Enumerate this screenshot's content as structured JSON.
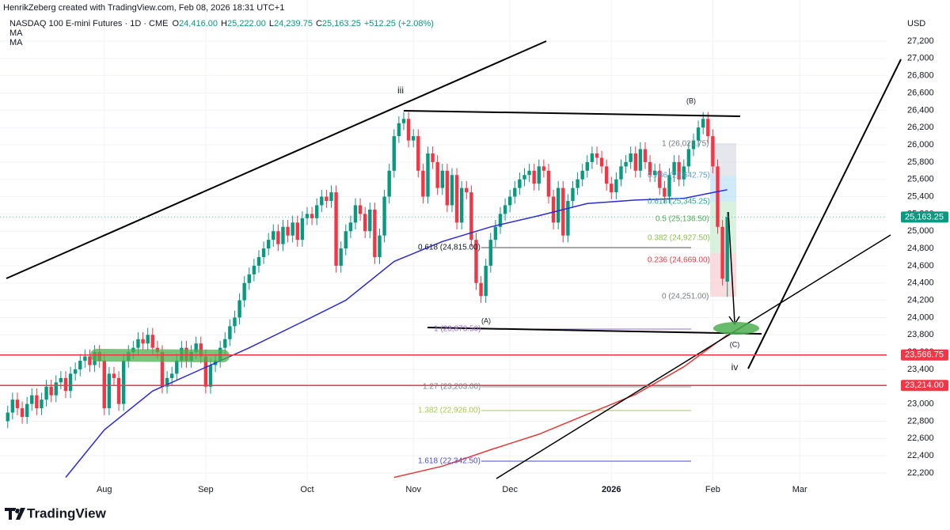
{
  "header": {
    "credit": "HenrikZeberg created with TradingView.com, Feb 08, 2026 18:31 UTC+1",
    "symbol": "NASDAQ 100 E-mini Futures · 1D · CME",
    "o_label": "O",
    "open": "24,416.00",
    "h_label": "H",
    "high": "25,222.00",
    "l_label": "L",
    "low": "24,239.75",
    "c_label": "C",
    "close": "25,163.25",
    "change": "+512.25 (+2.08%)",
    "indicators": [
      "MA",
      "MA"
    ]
  },
  "footer": {
    "brand": "TradingView"
  },
  "chart_data": {
    "type": "candlestick",
    "currency": "USD",
    "up_color": "#089981",
    "down_color": "#f23645",
    "grid": true,
    "xlim": [
      -1.6,
      182
    ],
    "xticks": [
      {
        "value": 20,
        "label": "Aug"
      },
      {
        "value": 41,
        "label": "Sep"
      },
      {
        "value": 62,
        "label": "Oct"
      },
      {
        "value": 84,
        "label": "Nov"
      },
      {
        "value": 104,
        "label": "Dec"
      },
      {
        "value": 125,
        "label": "2026"
      },
      {
        "value": 146,
        "label": "Feb"
      },
      {
        "value": 164,
        "label": "Mar"
      }
    ],
    "ylim": [
      22200,
      27200
    ],
    "yticks": [
      {
        "value": 22200,
        "label": "22,200"
      },
      {
        "value": 22400,
        "label": "22,400"
      },
      {
        "value": 22600,
        "label": "22,600"
      },
      {
        "value": 22800,
        "label": "22,800"
      },
      {
        "value": 23000,
        "label": "23,000"
      },
      {
        "value": 23200,
        "label": "23,200"
      },
      {
        "value": 23400,
        "label": "23,400"
      },
      {
        "value": 23600,
        "label": "23,600"
      },
      {
        "value": 23800,
        "label": "23,800"
      },
      {
        "value": 24000,
        "label": "24,000"
      },
      {
        "value": 24200,
        "label": "24,200"
      },
      {
        "value": 24400,
        "label": "24,400"
      },
      {
        "value": 24600,
        "label": "24,600"
      },
      {
        "value": 24800,
        "label": "24,800"
      },
      {
        "value": 25000,
        "label": "25,000"
      },
      {
        "value": 25200,
        "label": "25,200"
      },
      {
        "value": 25400,
        "label": "25,400"
      },
      {
        "value": 25600,
        "label": "25,600"
      },
      {
        "value": 25800,
        "label": "25,800"
      },
      {
        "value": 26000,
        "label": "26,000"
      },
      {
        "value": 26200,
        "label": "26,200"
      },
      {
        "value": 26400,
        "label": "26,400"
      },
      {
        "value": 26600,
        "label": "26,600"
      },
      {
        "value": 26800,
        "label": "26,800"
      },
      {
        "value": 27000,
        "label": "27,000"
      },
      {
        "value": 27200,
        "label": "27,200"
      }
    ],
    "candles": [
      [
        22800,
        22980,
        22720,
        22900
      ],
      [
        22900,
        23130,
        22820,
        23050
      ],
      [
        23050,
        23130,
        22870,
        22950
      ],
      [
        22950,
        23030,
        22770,
        22850
      ],
      [
        22850,
        23080,
        22770,
        23000
      ],
      [
        23000,
        23180,
        22920,
        23100
      ],
      [
        23100,
        23180,
        22870,
        22950
      ],
      [
        22950,
        23130,
        22870,
        23050
      ],
      [
        23050,
        23280,
        22970,
        23200
      ],
      [
        23200,
        23280,
        23020,
        23100
      ],
      [
        23100,
        23330,
        23020,
        23250
      ],
      [
        23250,
        23380,
        23170,
        23300
      ],
      [
        23300,
        23380,
        23070,
        23150
      ],
      [
        23150,
        23430,
        23070,
        23350
      ],
      [
        23350,
        23480,
        23270,
        23400
      ],
      [
        23400,
        23580,
        23320,
        23500
      ],
      [
        23500,
        23630,
        23420,
        23550
      ],
      [
        23550,
        23630,
        23370,
        23450
      ],
      [
        23450,
        23680,
        23370,
        23600
      ],
      [
        23600,
        23680,
        23420,
        23500
      ],
      [
        23500,
        23580,
        22870,
        22950
      ],
      [
        22950,
        23430,
        22870,
        23350
      ],
      [
        23350,
        23430,
        23220,
        23300
      ],
      [
        23300,
        23380,
        22920,
        23000
      ],
      [
        23000,
        23580,
        22920,
        23500
      ],
      [
        23500,
        23680,
        23420,
        23600
      ],
      [
        23600,
        23730,
        23520,
        23650
      ],
      [
        23650,
        23830,
        23570,
        23750
      ],
      [
        23750,
        23830,
        23620,
        23700
      ],
      [
        23700,
        23880,
        23620,
        23800
      ],
      [
        23800,
        23880,
        23570,
        23650
      ],
      [
        23650,
        23730,
        23520,
        23600
      ],
      [
        23600,
        23680,
        23120,
        23200
      ],
      [
        23200,
        23380,
        23120,
        23300
      ],
      [
        23300,
        23430,
        23220,
        23350
      ],
      [
        23350,
        23580,
        23270,
        23500
      ],
      [
        23500,
        23730,
        23420,
        23650
      ],
      [
        23650,
        23730,
        23420,
        23500
      ],
      [
        23500,
        23680,
        23420,
        23600
      ],
      [
        23600,
        23780,
        23520,
        23700
      ],
      [
        23700,
        23780,
        23470,
        23550
      ],
      [
        23550,
        23630,
        23120,
        23200
      ],
      [
        23200,
        23530,
        23120,
        23450
      ],
      [
        23450,
        23580,
        23370,
        23500
      ],
      [
        23500,
        23730,
        23420,
        23650
      ],
      [
        23650,
        23830,
        23570,
        23750
      ],
      [
        23750,
        23980,
        23670,
        23900
      ],
      [
        23900,
        24080,
        23820,
        24000
      ],
      [
        24000,
        24280,
        23920,
        24200
      ],
      [
        24200,
        24480,
        24120,
        24400
      ],
      [
        24400,
        24580,
        24320,
        24500
      ],
      [
        24500,
        24680,
        24420,
        24600
      ],
      [
        24600,
        24780,
        24520,
        24700
      ],
      [
        24700,
        24880,
        24620,
        24800
      ],
      [
        24800,
        24980,
        24720,
        24900
      ],
      [
        24900,
        25080,
        24820,
        25000
      ],
      [
        25000,
        25080,
        24770,
        24850
      ],
      [
        24850,
        25130,
        24770,
        25050
      ],
      [
        25050,
        25130,
        24870,
        24950
      ],
      [
        24950,
        25180,
        24870,
        25100
      ],
      [
        25100,
        25180,
        24820,
        24900
      ],
      [
        24900,
        25230,
        24820,
        25150
      ],
      [
        25150,
        25280,
        25070,
        25200
      ],
      [
        25200,
        25280,
        25070,
        25150
      ],
      [
        25150,
        25380,
        25070,
        25300
      ],
      [
        25300,
        25480,
        25220,
        25400
      ],
      [
        25400,
        25480,
        25270,
        25350
      ],
      [
        25350,
        25530,
        25270,
        25450
      ],
      [
        25450,
        25530,
        24520,
        24600
      ],
      [
        24600,
        24880,
        24520,
        24800
      ],
      [
        24800,
        25080,
        24720,
        25000
      ],
      [
        25000,
        25180,
        24920,
        25100
      ],
      [
        25100,
        25380,
        25020,
        25300
      ],
      [
        25300,
        25380,
        25120,
        25200
      ],
      [
        25200,
        25280,
        24920,
        25000
      ],
      [
        25000,
        25330,
        24920,
        25250
      ],
      [
        25250,
        25330,
        24620,
        24700
      ],
      [
        24700,
        25030,
        24620,
        24950
      ],
      [
        24950,
        25480,
        24870,
        25400
      ],
      [
        25400,
        25780,
        25320,
        25700
      ],
      [
        25700,
        26180,
        25620,
        26100
      ],
      [
        26100,
        26330,
        26020,
        26250
      ],
      [
        26250,
        26380,
        26170,
        26300
      ],
      [
        26300,
        26380,
        25970,
        26050
      ],
      [
        26050,
        26180,
        25970,
        26100
      ],
      [
        26100,
        26180,
        25620,
        25700
      ],
      [
        25700,
        25780,
        25320,
        25400
      ],
      [
        25400,
        25980,
        25320,
        25900
      ],
      [
        25900,
        25980,
        25720,
        25800
      ],
      [
        25800,
        25880,
        25420,
        25500
      ],
      [
        25500,
        25780,
        25420,
        25700
      ],
      [
        25700,
        25780,
        25220,
        25300
      ],
      [
        25300,
        25730,
        25220,
        25650
      ],
      [
        25650,
        25730,
        25020,
        25100
      ],
      [
        25100,
        25580,
        25020,
        25500
      ],
      [
        25500,
        25580,
        25370,
        25450
      ],
      [
        25450,
        25530,
        24820,
        24900
      ],
      [
        24900,
        24980,
        24320,
        24400
      ],
      [
        24400,
        24480,
        24170,
        24250
      ],
      [
        24250,
        24680,
        24170,
        24600
      ],
      [
        24600,
        24980,
        24520,
        24900
      ],
      [
        24900,
        25130,
        24820,
        25050
      ],
      [
        25050,
        25280,
        24970,
        25200
      ],
      [
        25200,
        25380,
        25120,
        25300
      ],
      [
        25300,
        25480,
        25220,
        25400
      ],
      [
        25400,
        25580,
        25320,
        25500
      ],
      [
        25500,
        25680,
        25420,
        25600
      ],
      [
        25600,
        25730,
        25520,
        25650
      ],
      [
        25650,
        25780,
        25570,
        25700
      ],
      [
        25700,
        25780,
        25470,
        25550
      ],
      [
        25550,
        25830,
        25470,
        25750
      ],
      [
        25750,
        25830,
        25620,
        25700
      ],
      [
        25700,
        25780,
        25320,
        25400
      ],
      [
        25400,
        25480,
        25020,
        25100
      ],
      [
        25100,
        25580,
        25020,
        25500
      ],
      [
        25500,
        25580,
        24870,
        24950
      ],
      [
        24950,
        25430,
        24870,
        25350
      ],
      [
        25350,
        25580,
        25270,
        25500
      ],
      [
        25500,
        25680,
        25420,
        25600
      ],
      [
        25600,
        25780,
        25520,
        25700
      ],
      [
        25700,
        25880,
        25620,
        25800
      ],
      [
        25800,
        25980,
        25720,
        25900
      ],
      [
        25900,
        25980,
        25770,
        25850
      ],
      [
        25850,
        25930,
        25670,
        25750
      ],
      [
        25750,
        25830,
        25470,
        25550
      ],
      [
        25550,
        25630,
        25370,
        25450
      ],
      [
        25450,
        25680,
        25370,
        25600
      ],
      [
        25600,
        25830,
        25520,
        25750
      ],
      [
        25750,
        25880,
        25670,
        25800
      ],
      [
        25800,
        25980,
        25720,
        25900
      ],
      [
        25900,
        25980,
        25620,
        25700
      ],
      [
        25700,
        26030,
        25620,
        25950
      ],
      [
        25950,
        26030,
        25720,
        25800
      ],
      [
        25800,
        25880,
        25570,
        25650
      ],
      [
        25650,
        25780,
        25570,
        25700
      ],
      [
        25700,
        25780,
        25420,
        25500
      ],
      [
        25500,
        25580,
        25320,
        25400
      ],
      [
        25400,
        25730,
        25320,
        25650
      ],
      [
        25650,
        25880,
        25570,
        25800
      ],
      [
        25800,
        25880,
        25520,
        25600
      ],
      [
        25600,
        25830,
        25520,
        25750
      ],
      [
        25750,
        26030,
        25670,
        25950
      ],
      [
        25950,
        26130,
        25870,
        26050
      ],
      [
        26050,
        26280,
        25970,
        26200
      ],
      [
        26200,
        26380,
        26120,
        26300
      ],
      [
        26300,
        26380,
        26020,
        26100
      ],
      [
        26100,
        26180,
        25670,
        25750
      ],
      [
        25750,
        25830,
        24970,
        25050
      ],
      [
        25050,
        25130,
        24370,
        24450
      ],
      [
        24416,
        25222,
        24239.75,
        25163.25
      ]
    ],
    "moving_averages": [
      {
        "color": "#2a2ad8",
        "x": [
          12,
          20,
          30,
          40,
          50,
          61,
          70,
          80,
          90,
          100,
          110,
          120,
          130,
          140,
          149
        ],
        "values": [
          22150,
          22700,
          23150,
          23400,
          23650,
          23950,
          24200,
          24650,
          24880,
          25050,
          25180,
          25320,
          25360,
          25380,
          25480
        ]
      },
      {
        "color": "#e53935",
        "x": [
          80,
          90,
          100,
          110,
          120,
          130,
          140,
          149
        ],
        "values": [
          22150,
          22280,
          22470,
          22650,
          22880,
          23110,
          23430,
          23800
        ]
      }
    ],
    "price_lines": [
      {
        "value": 23566.75,
        "label": "23,566.75",
        "color": "#f23645",
        "style": "solid"
      },
      {
        "value": 23214,
        "label": "23,214.00",
        "color": "#f23645",
        "style": "solid"
      },
      {
        "value": 25163.25,
        "label": "25,163.25",
        "color": "#089981",
        "style": "dotted"
      }
    ],
    "fib_labels": [
      {
        "text": "1 (26,021.75)",
        "color": "#787b86"
      },
      {
        "text": "0.786 (25,642.75)",
        "color": "#5b9bd5"
      },
      {
        "text": "0.618 (25,345.25)",
        "color": "#22ab94"
      },
      {
        "text": "0.5 (25,136.50)",
        "color": "#4caf50"
      },
      {
        "text": "0.382 (24,927.50)",
        "color": "#8bc34a"
      },
      {
        "text": "0.236 (24,669.00)",
        "color": "#f23645"
      },
      {
        "text": "0 (24,251.00)",
        "color": "#787b86"
      },
      {
        "text": "0.618 (24,815.00)",
        "color": "#131722"
      },
      {
        "text": "1 (23,873.50)",
        "color": "#9c6ad8"
      },
      {
        "text": "1.27 (23,203.00)",
        "color": "#787b86"
      },
      {
        "text": "1.382 (22,926.00)",
        "color": "#a5c94b"
      },
      {
        "text": "1.618 (22,342.50)",
        "color": "#4a4ad0"
      }
    ],
    "wave_labels": [
      "iii",
      "(B)",
      "(A)",
      "(C)",
      "iv"
    ]
  }
}
